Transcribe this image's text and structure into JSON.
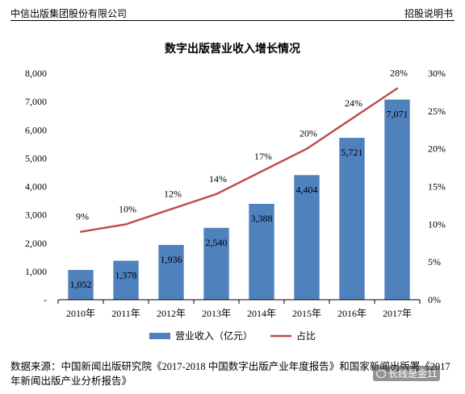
{
  "header": {
    "company": "中信出版集团股份有限公司",
    "doc_type": "招股说明书"
  },
  "chart_data": {
    "type": "bar",
    "title": "数字出版营业收入增长情况",
    "categories": [
      "2010年",
      "2011年",
      "2012年",
      "2013年",
      "2014年",
      "2015年",
      "2016年",
      "2017年"
    ],
    "series": [
      {
        "name": "营业收入（亿元）",
        "type": "bar",
        "axis": "left",
        "color": "#4F81BD",
        "values": [
          1052,
          1378,
          1936,
          2540,
          3388,
          4404,
          5721,
          7071
        ],
        "labels": [
          "1,052",
          "1,378",
          "1,936",
          "2,540",
          "3,388",
          "4,404",
          "5,721",
          "7,071"
        ]
      },
      {
        "name": "占比",
        "type": "line",
        "axis": "right",
        "color": "#C0504D",
        "values": [
          9,
          10,
          12,
          14,
          17,
          20,
          24,
          28
        ],
        "labels": [
          "9%",
          "10%",
          "12%",
          "14%",
          "17%",
          "20%",
          "24%",
          "28%"
        ]
      }
    ],
    "y_left": {
      "min": 0,
      "max": 8000,
      "ticks": [
        "-",
        "1,000",
        "2,000",
        "3,000",
        "4,000",
        "5,000",
        "6,000",
        "7,000",
        "8,000"
      ]
    },
    "y_right": {
      "min": 0,
      "max": 30,
      "ticks": [
        "0%",
        "5%",
        "10%",
        "15%",
        "20%",
        "25%",
        "30%"
      ]
    },
    "grid": false,
    "legend": "bottom"
  },
  "source": {
    "text": "数据来源：中国新闻出版研究院《2017-2018 中国数字出版产业年度报告》和国家新闻出版署《2017 年新闻出版产业分析报告》"
  },
  "watermark": {
    "text": "长线是金11"
  }
}
